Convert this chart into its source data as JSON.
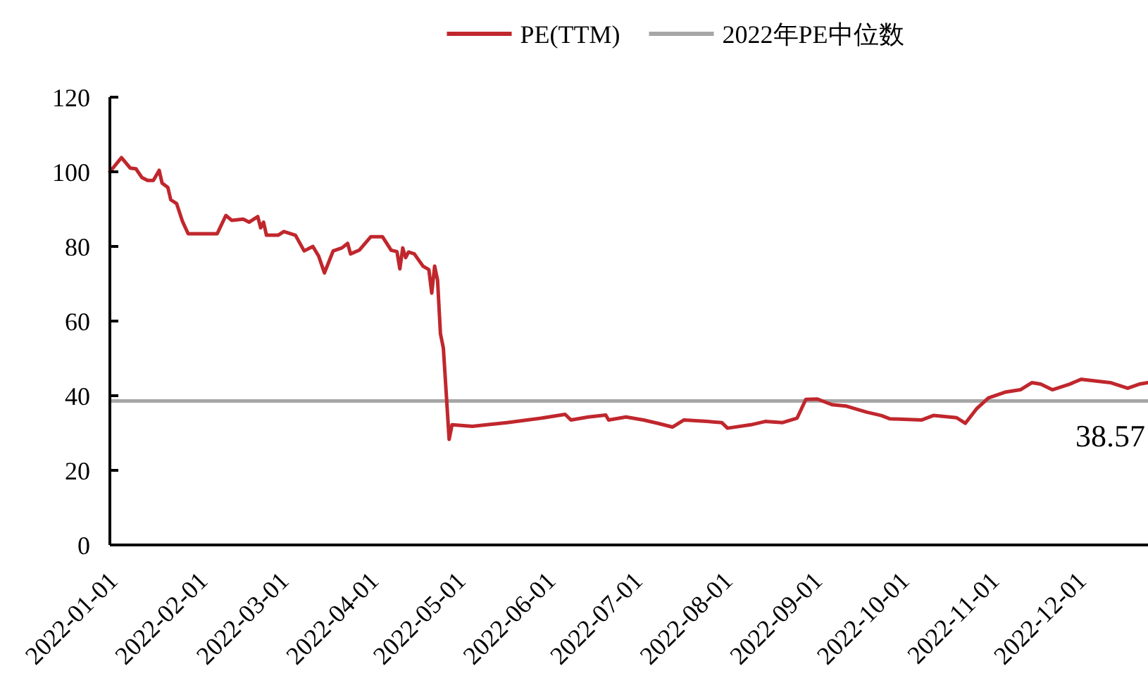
{
  "chart_data": {
    "type": "line",
    "legend": "top",
    "grid": false,
    "marker": "none",
    "line_style": "solid",
    "xlim": [
      "2021-12-29",
      "2022-12-22"
    ],
    "xticks": [
      "2022-01-01",
      "2022-02-01",
      "2022-03-01",
      "2022-04-01",
      "2022-05-01",
      "2022-06-01",
      "2022-07-01",
      "2022-08-01",
      "2022-09-01",
      "2022-10-01",
      "2022-11-01",
      "2022-12-01"
    ],
    "ylim": [
      0,
      120
    ],
    "yticks": [
      0,
      20,
      40,
      60,
      80,
      100,
      120
    ],
    "series": [
      {
        "name": "PE(TTM)",
        "color": "#c0272d",
        "x": [
          "2021-12-29",
          "2022-01-02",
          "2022-01-05",
          "2022-01-07",
          "2022-01-09",
          "2022-01-11",
          "2022-01-13",
          "2022-01-15",
          "2022-01-16",
          "2022-01-18",
          "2022-01-19",
          "2022-01-21",
          "2022-01-23",
          "2022-01-25",
          "2022-02-04",
          "2022-02-07",
          "2022-02-09",
          "2022-02-13",
          "2022-02-15",
          "2022-02-18",
          "2022-02-19",
          "2022-02-20",
          "2022-02-21",
          "2022-02-25",
          "2022-02-27",
          "2022-03-03",
          "2022-03-06",
          "2022-03-09",
          "2022-03-11",
          "2022-03-13",
          "2022-03-16",
          "2022-03-19",
          "2022-03-21",
          "2022-03-22",
          "2022-03-25",
          "2022-03-29",
          "2022-04-02",
          "2022-04-05",
          "2022-04-07",
          "2022-04-08",
          "2022-04-09",
          "2022-04-10",
          "2022-04-11",
          "2022-04-13",
          "2022-04-16",
          "2022-04-18",
          "2022-04-19",
          "2022-04-20",
          "2022-04-21",
          "2022-04-22",
          "2022-04-23",
          "2022-04-25",
          "2022-04-26",
          "2022-05-03",
          "2022-05-08",
          "2022-05-15",
          "2022-05-21",
          "2022-05-27",
          "2022-06-04",
          "2022-06-06",
          "2022-06-12",
          "2022-06-18",
          "2022-06-19",
          "2022-06-25",
          "2022-07-01",
          "2022-07-06",
          "2022-07-11",
          "2022-07-15",
          "2022-07-23",
          "2022-07-28",
          "2022-07-30",
          "2022-08-07",
          "2022-08-12",
          "2022-08-18",
          "2022-08-23",
          "2022-08-26",
          "2022-08-30",
          "2022-09-04",
          "2022-09-09",
          "2022-09-16",
          "2022-09-21",
          "2022-09-24",
          "2022-10-05",
          "2022-10-09",
          "2022-10-17",
          "2022-10-20",
          "2022-10-24",
          "2022-10-28",
          "2022-11-03",
          "2022-11-08",
          "2022-11-12",
          "2022-11-15",
          "2022-11-19",
          "2022-11-25",
          "2022-11-29",
          "2022-12-09",
          "2022-12-15",
          "2022-12-19",
          "2022-12-22"
        ],
        "values": [
          100,
          103.8,
          101,
          100.8,
          98.5,
          97.7,
          97.7,
          100.4,
          97,
          95.8,
          92.5,
          91.5,
          86.8,
          83.4,
          83.4,
          88.3,
          87,
          87.3,
          86.5,
          88,
          85,
          86.5,
          83,
          83,
          84,
          83,
          78.8,
          80,
          77.4,
          72.9,
          78.8,
          79.6,
          80.8,
          78,
          79,
          82.6,
          82.6,
          79,
          78.6,
          74,
          79.6,
          77,
          78.5,
          78,
          74.7,
          73.8,
          67.5,
          74.7,
          71,
          56.6,
          52.8,
          28.3,
          32.2,
          31.8,
          32.2,
          32.8,
          33.4,
          34,
          35,
          33.5,
          34.3,
          34.8,
          33.5,
          34.3,
          33.5,
          32.6,
          31.6,
          33.5,
          33.1,
          32.8,
          31.3,
          32.2,
          33.1,
          32.8,
          34,
          39,
          39.1,
          37.6,
          37.2,
          35.6,
          34.7,
          33.8,
          33.5,
          34.7,
          34.1,
          32.6,
          36.6,
          39.4,
          41,
          41.6,
          43.5,
          43.1,
          41.6,
          43.1,
          44.4,
          43.5,
          42,
          43.1,
          43.5
        ]
      }
    ],
    "ref_lines": [
      {
        "axis": "y",
        "value": 38.57,
        "label": "2022年PE中位数",
        "color": "#a6a6a6"
      }
    ],
    "annotations": [
      {
        "text": "38.57",
        "x": "2022-12-22",
        "y": 38.57
      }
    ]
  }
}
